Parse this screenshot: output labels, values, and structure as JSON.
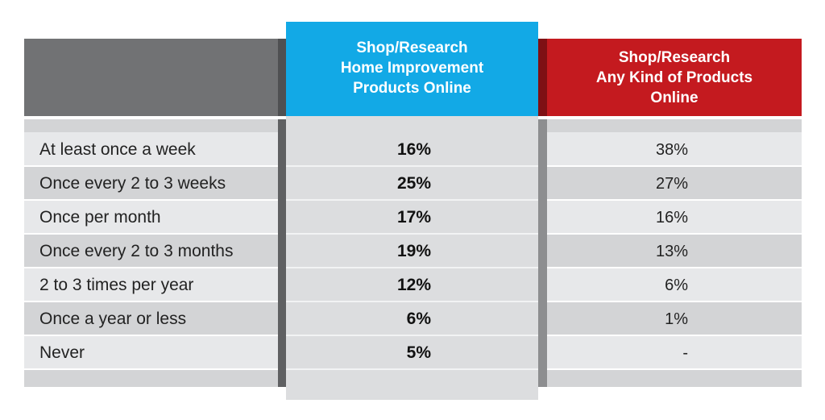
{
  "table": {
    "headers": {
      "home_improvement": "Shop/Research Home Improvement Products Online",
      "any_products": "Shop/Research Any Kind of Products Online"
    },
    "header_lines": {
      "home_improvement": [
        "Shop/Research",
        "Home Improvement",
        "Products Online"
      ],
      "any_products": [
        "Shop/Research",
        "Any Kind of Products",
        "Online"
      ]
    },
    "rows": [
      {
        "label": "At least once a week",
        "home_improvement": "16%",
        "any_products": "38%"
      },
      {
        "label": "Once every 2 to 3 weeks",
        "home_improvement": "25%",
        "any_products": "27%"
      },
      {
        "label": "Once per month",
        "home_improvement": "17%",
        "any_products": "16%"
      },
      {
        "label": "Once every 2 to 3 months",
        "home_improvement": "19%",
        "any_products": "13%"
      },
      {
        "label": "2 to 3 times per year",
        "home_improvement": "12%",
        "any_products": "6%"
      },
      {
        "label": "Once a year or less",
        "home_improvement": "6%",
        "any_products": "1%"
      },
      {
        "label": "Never",
        "home_improvement": "5%",
        "any_products": "-"
      }
    ]
  },
  "colors": {
    "header_gray": "#717274",
    "header_blue": "#12a9e6",
    "header_red": "#c41a1f",
    "band_dark": "#d3d4d6",
    "band_light": "#e7e8ea",
    "mid_column": "#dcdddf"
  },
  "chart_data": {
    "type": "table",
    "columns": [
      "",
      "Shop/Research Home Improvement Products Online",
      "Shop/Research Any Kind of Products Online"
    ],
    "categories": [
      "At least once a week",
      "Once every 2 to 3 weeks",
      "Once per month",
      "Once every 2 to 3 months",
      "2 to 3 times per year",
      "Once a year or less",
      "Never"
    ],
    "series": [
      {
        "name": "Shop/Research Home Improvement Products Online",
        "values": [
          16,
          25,
          17,
          19,
          12,
          6,
          5
        ]
      },
      {
        "name": "Shop/Research Any Kind of Products Online",
        "values": [
          38,
          27,
          16,
          13,
          6,
          1,
          null
        ]
      }
    ],
    "unit": "%"
  }
}
